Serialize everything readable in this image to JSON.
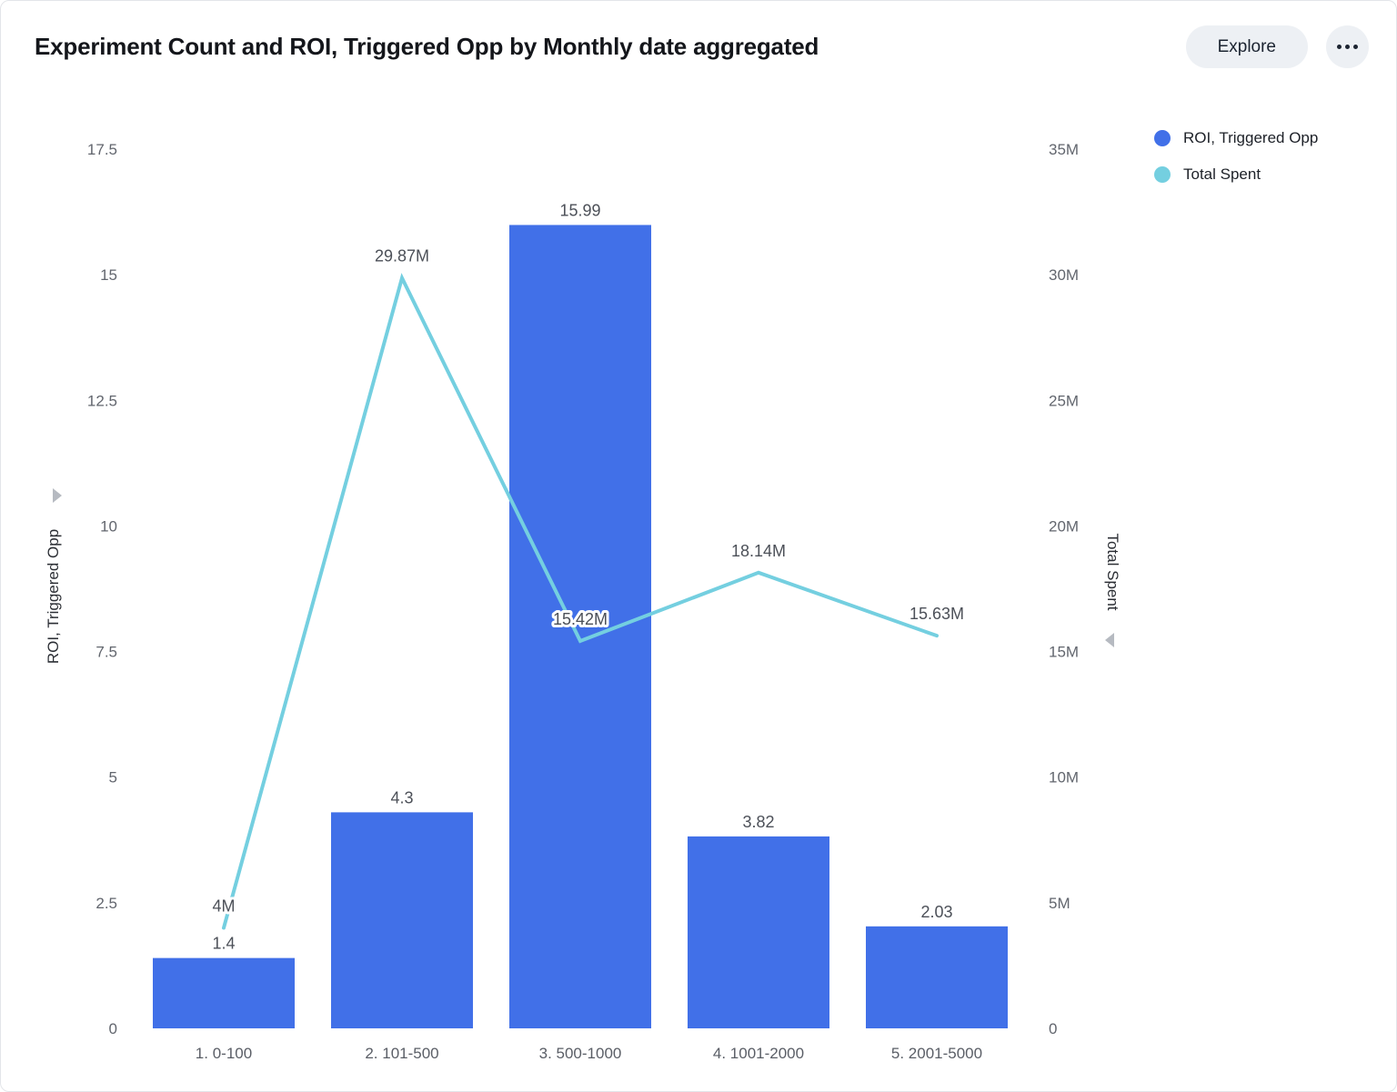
{
  "header": {
    "title": "Experiment Count and ROI, Triggered Opp by Monthly date aggregated",
    "explore_label": "Explore"
  },
  "chart_data": {
    "type": "combo",
    "title": "Experiment Count and ROI, Triggered Opp by Monthly date aggregated",
    "categories": [
      "1. 0-100",
      "2. 101-500",
      "3. 500-1000",
      "4. 1001-2000",
      "5. 2001-5000"
    ],
    "series": [
      {
        "name": "ROI, Triggered Opp",
        "type": "bar",
        "axis": "left",
        "color": "#4170e8",
        "values": [
          1.4,
          4.3,
          15.99,
          3.82,
          2.03
        ],
        "labels": [
          "1.4",
          "4.3",
          "15.99",
          "3.82",
          "2.03"
        ]
      },
      {
        "name": "Total Spent",
        "type": "line",
        "axis": "right",
        "color": "#74cfe0",
        "values": [
          4000000,
          29870000,
          15420000,
          18140000,
          15630000
        ],
        "labels": [
          "4M",
          "29.87M",
          "15.42M",
          "18.14M",
          "15.63M"
        ]
      }
    ],
    "axes": {
      "left": {
        "title": "ROI, Triggered Opp",
        "range": [
          0,
          17.5
        ],
        "tick_values": [
          0,
          2.5,
          5,
          7.5,
          10,
          12.5,
          15,
          17.5
        ],
        "tick_labels": [
          "0",
          "2.5",
          "5",
          "7.5",
          "10",
          "12.5",
          "15",
          "17.5"
        ]
      },
      "right": {
        "title": "Total Spent",
        "range": [
          0,
          35000000
        ],
        "tick_values": [
          0,
          5000000,
          10000000,
          15000000,
          20000000,
          25000000,
          30000000,
          35000000
        ],
        "tick_labels": [
          "0",
          "5M",
          "10M",
          "15M",
          "20M",
          "25M",
          "30M",
          "35M"
        ]
      }
    },
    "grid": false,
    "legend_position": "top-right"
  }
}
